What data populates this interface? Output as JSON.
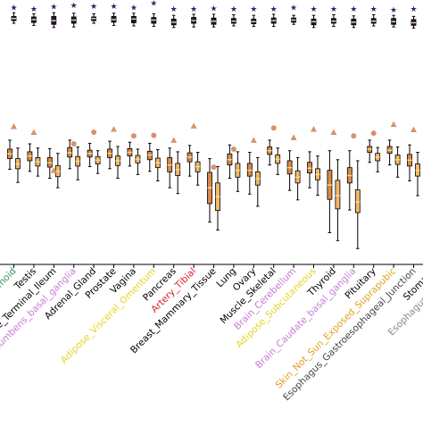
{
  "chart_data": {
    "type": "box",
    "categories": [
      {
        "label": "Colon_Sigmoid",
        "color": "#3a8f5e"
      },
      {
        "label": "Testis",
        "color": "#000000"
      },
      {
        "label": "Small_Intestine_Terminal_Ileum",
        "color": "#000000"
      },
      {
        "label": "Brain_Nucleus_accumbens_basal_ganglia",
        "color": "#c77ad8"
      },
      {
        "label": "Adrenal_Gland",
        "color": "#000000"
      },
      {
        "label": "Prostate",
        "color": "#000000"
      },
      {
        "label": "Vagina",
        "color": "#000000"
      },
      {
        "label": "Adipose_Visceral_Omentum",
        "color": "#e6d32a"
      },
      {
        "label": "Pancreas",
        "color": "#000000"
      },
      {
        "label": "Artery_Tibial",
        "color": "#d62728"
      },
      {
        "label": "Breast_Mammary_Tissue",
        "color": "#000000"
      },
      {
        "label": "Lung",
        "color": "#000000"
      },
      {
        "label": "Ovary",
        "color": "#000000"
      },
      {
        "label": "Muscle_Skeletal",
        "color": "#000000"
      },
      {
        "label": "Brain_Cerebellum",
        "color": "#c77ad8"
      },
      {
        "label": "Adipose_Subcutaneous",
        "color": "#e6d32a"
      },
      {
        "label": "Thyroid",
        "color": "#000000"
      },
      {
        "label": "Brain_Caudate_basal_ganglia",
        "color": "#c77ad8"
      },
      {
        "label": "Pituitary",
        "color": "#000000"
      },
      {
        "label": "Skin_Not_Sun_Exposed_Suprapubic",
        "color": "#e0a020"
      },
      {
        "label": "Esophagus_Gastroesophageal_Junction",
        "color": "#444444"
      },
      {
        "label": "Stomach",
        "color": "#000000"
      },
      {
        "label": "Esophagus_Mucosa",
        "color": "#888888"
      }
    ],
    "ylim": [
      0,
      1
    ],
    "top_group": [
      {
        "star": 0.972,
        "q1": 0.922,
        "median": 0.93,
        "q3": 0.938,
        "lo": 0.912,
        "hi": 0.952
      },
      {
        "star": 0.966,
        "q1": 0.915,
        "median": 0.926,
        "q3": 0.936,
        "lo": 0.904,
        "hi": 0.948
      },
      {
        "star": 0.974,
        "q1": 0.908,
        "median": 0.922,
        "q3": 0.938,
        "lo": 0.896,
        "hi": 0.952
      },
      {
        "star": 0.98,
        "q1": 0.912,
        "median": 0.924,
        "q3": 0.936,
        "lo": 0.898,
        "hi": 0.95
      },
      {
        "star": 0.976,
        "q1": 0.922,
        "median": 0.93,
        "q3": 0.936,
        "lo": 0.912,
        "hi": 0.948
      },
      {
        "star": 0.976,
        "q1": 0.916,
        "median": 0.926,
        "q3": 0.938,
        "lo": 0.904,
        "hi": 0.95
      },
      {
        "star": 0.972,
        "q1": 0.914,
        "median": 0.928,
        "q3": 0.938,
        "lo": 0.902,
        "hi": 0.95
      },
      {
        "star": 0.988,
        "q1": 0.912,
        "median": 0.924,
        "q3": 0.934,
        "lo": 0.9,
        "hi": 0.948
      },
      {
        "star": 0.966,
        "q1": 0.906,
        "median": 0.916,
        "q3": 0.928,
        "lo": 0.896,
        "hi": 0.942
      },
      {
        "star": 0.966,
        "q1": 0.912,
        "median": 0.922,
        "q3": 0.934,
        "lo": 0.898,
        "hi": 0.946
      },
      {
        "star": 0.968,
        "q1": 0.908,
        "median": 0.92,
        "q3": 0.932,
        "lo": 0.898,
        "hi": 0.946
      },
      {
        "star": 0.966,
        "q1": 0.912,
        "median": 0.92,
        "q3": 0.93,
        "lo": 0.902,
        "hi": 0.944
      },
      {
        "star": 0.966,
        "q1": 0.91,
        "median": 0.918,
        "q3": 0.928,
        "lo": 0.9,
        "hi": 0.942
      },
      {
        "star": 0.966,
        "q1": 0.912,
        "median": 0.922,
        "q3": 0.932,
        "lo": 0.9,
        "hi": 0.946
      },
      {
        "star": 0.972,
        "q1": 0.916,
        "median": 0.924,
        "q3": 0.932,
        "lo": 0.908,
        "hi": 0.942
      },
      {
        "star": 0.966,
        "q1": 0.906,
        "median": 0.918,
        "q3": 0.928,
        "lo": 0.896,
        "hi": 0.942
      },
      {
        "star": 0.966,
        "q1": 0.912,
        "median": 0.92,
        "q3": 0.93,
        "lo": 0.9,
        "hi": 0.944
      },
      {
        "star": 0.966,
        "q1": 0.906,
        "median": 0.916,
        "q3": 0.928,
        "lo": 0.896,
        "hi": 0.94
      },
      {
        "star": 0.966,
        "q1": 0.912,
        "median": 0.92,
        "q3": 0.93,
        "lo": 0.902,
        "hi": 0.944
      },
      {
        "star": 0.962,
        "q1": 0.908,
        "median": 0.918,
        "q3": 0.93,
        "lo": 0.898,
        "hi": 0.942
      },
      {
        "star": 0.966,
        "q1": 0.904,
        "median": 0.914,
        "q3": 0.926,
        "lo": 0.894,
        "hi": 0.938
      },
      {
        "star": 0.96,
        "q1": 0.906,
        "median": 0.916,
        "q3": 0.926,
        "lo": 0.896,
        "hi": 0.94
      },
      {
        "star": 0.968,
        "q1": 0.912,
        "median": 0.922,
        "q3": 0.93,
        "lo": 0.902,
        "hi": 0.942
      }
    ],
    "bottom_group": [
      {
        "marker": "triangle",
        "marker_y": 0.522,
        "boxes": [
          {
            "q1": 0.4,
            "median": 0.418,
            "q3": 0.436,
            "lo": 0.36,
            "hi": 0.47
          },
          {
            "q1": 0.362,
            "median": 0.38,
            "q3": 0.4,
            "lo": 0.31,
            "hi": 0.44
          }
        ]
      },
      {
        "marker": "triangle",
        "marker_y": 0.5,
        "boxes": [
          {
            "q1": 0.392,
            "median": 0.41,
            "q3": 0.426,
            "lo": 0.352,
            "hi": 0.456
          },
          {
            "q1": 0.372,
            "median": 0.388,
            "q3": 0.404,
            "lo": 0.334,
            "hi": 0.44
          }
        ]
      },
      {
        "marker": "triangle",
        "marker_y": 0.356,
        "boxes": [
          {
            "q1": 0.368,
            "median": 0.384,
            "q3": 0.404,
            "lo": 0.326,
            "hi": 0.438
          },
          {
            "q1": 0.332,
            "median": 0.352,
            "q3": 0.374,
            "lo": 0.29,
            "hi": 0.42
          }
        ]
      },
      {
        "marker": "circle",
        "marker_y": 0.456,
        "boxes": [
          {
            "q1": 0.406,
            "median": 0.422,
            "q3": 0.442,
            "lo": 0.362,
            "hi": 0.47
          },
          {
            "q1": 0.372,
            "median": 0.39,
            "q3": 0.408,
            "lo": 0.32,
            "hi": 0.444
          }
        ]
      },
      {
        "marker": "circle",
        "marker_y": 0.5,
        "boxes": [
          {
            "q1": 0.406,
            "median": 0.42,
            "q3": 0.432,
            "lo": 0.37,
            "hi": 0.458
          },
          {
            "q1": 0.38,
            "median": 0.394,
            "q3": 0.408,
            "lo": 0.344,
            "hi": 0.43
          }
        ]
      },
      {
        "marker": "triangle",
        "marker_y": 0.512,
        "boxes": [
          {
            "q1": 0.404,
            "median": 0.42,
            "q3": 0.436,
            "lo": 0.362,
            "hi": 0.466
          },
          {
            "q1": 0.374,
            "median": 0.392,
            "q3": 0.41,
            "lo": 0.326,
            "hi": 0.446
          }
        ]
      },
      {
        "marker": "circle",
        "marker_y": 0.486,
        "boxes": [
          {
            "q1": 0.41,
            "median": 0.424,
            "q3": 0.438,
            "lo": 0.372,
            "hi": 0.462
          },
          {
            "q1": 0.384,
            "median": 0.398,
            "q3": 0.412,
            "lo": 0.34,
            "hi": 0.436
          }
        ]
      },
      {
        "marker": "circle",
        "marker_y": 0.488,
        "boxes": [
          {
            "q1": 0.396,
            "median": 0.414,
            "q3": 0.428,
            "lo": 0.352,
            "hi": 0.458
          },
          {
            "q1": 0.366,
            "median": 0.384,
            "q3": 0.402,
            "lo": 0.316,
            "hi": 0.434
          }
        ]
      },
      {
        "marker": "triangle",
        "marker_y": 0.47,
        "boxes": [
          {
            "q1": 0.35,
            "median": 0.376,
            "q3": 0.404,
            "lo": 0.29,
            "hi": 0.44
          },
          {
            "q1": 0.336,
            "median": 0.358,
            "q3": 0.382,
            "lo": 0.268,
            "hi": 0.426
          }
        ]
      },
      {
        "marker": "triangle",
        "marker_y": 0.524,
        "boxes": [
          {
            "q1": 0.388,
            "median": 0.406,
            "q3": 0.422,
            "lo": 0.334,
            "hi": 0.45
          },
          {
            "q1": 0.35,
            "median": 0.37,
            "q3": 0.388,
            "lo": 0.3,
            "hi": 0.424
          }
        ]
      },
      {
        "marker": "circle",
        "marker_y": 0.368,
        "boxes": [
          {
            "q1": 0.23,
            "median": 0.29,
            "q3": 0.348,
            "lo": 0.16,
            "hi": 0.4
          },
          {
            "q1": 0.204,
            "median": 0.256,
            "q3": 0.308,
            "lo": 0.13,
            "hi": 0.37
          }
        ]
      },
      {
        "marker": "circle",
        "marker_y": 0.436,
        "boxes": [
          {
            "q1": 0.376,
            "median": 0.396,
            "q3": 0.418,
            "lo": 0.326,
            "hi": 0.452
          },
          {
            "q1": 0.33,
            "median": 0.356,
            "q3": 0.382,
            "lo": 0.276,
            "hi": 0.426
          }
        ]
      },
      {
        "marker": "triangle",
        "marker_y": 0.47,
        "boxes": [
          {
            "q1": 0.334,
            "median": 0.356,
            "q3": 0.382,
            "lo": 0.266,
            "hi": 0.424
          },
          {
            "q1": 0.3,
            "median": 0.324,
            "q3": 0.35,
            "lo": 0.22,
            "hi": 0.404
          }
        ]
      },
      {
        "marker": "circle",
        "marker_y": 0.516,
        "boxes": [
          {
            "q1": 0.416,
            "median": 0.43,
            "q3": 0.444,
            "lo": 0.376,
            "hi": 0.47
          },
          {
            "q1": 0.382,
            "median": 0.398,
            "q3": 0.414,
            "lo": 0.34,
            "hi": 0.44
          }
        ]
      },
      {
        "marker": "triangle",
        "marker_y": 0.48,
        "boxes": [
          {
            "q1": 0.342,
            "median": 0.366,
            "q3": 0.392,
            "lo": 0.28,
            "hi": 0.43
          },
          {
            "q1": 0.308,
            "median": 0.33,
            "q3": 0.354,
            "lo": 0.244,
            "hi": 0.404
          }
        ]
      },
      {
        "marker": "triangle",
        "marker_y": 0.512,
        "boxes": [
          {
            "q1": 0.346,
            "median": 0.364,
            "q3": 0.386,
            "lo": 0.29,
            "hi": 0.426
          },
          {
            "q1": 0.32,
            "median": 0.34,
            "q3": 0.362,
            "lo": 0.262,
            "hi": 0.41
          }
        ]
      },
      {
        "marker": "triangle",
        "marker_y": 0.5,
        "boxes": [
          {
            "q1": 0.246,
            "median": 0.3,
            "q3": 0.356,
            "lo": 0.12,
            "hi": 0.43
          },
          {
            "q1": 0.21,
            "median": 0.26,
            "q3": 0.318,
            "lo": 0.09,
            "hi": 0.396
          }
        ]
      },
      {
        "marker": "circle",
        "marker_y": 0.486,
        "boxes": [
          {
            "q1": 0.308,
            "median": 0.336,
            "q3": 0.366,
            "lo": 0.206,
            "hi": 0.43
          },
          {
            "q1": 0.196,
            "median": 0.236,
            "q3": 0.282,
            "lo": 0.06,
            "hi": 0.392
          }
        ]
      },
      {
        "marker": "circle",
        "marker_y": 0.496,
        "boxes": [
          {
            "q1": 0.424,
            "median": 0.436,
            "q3": 0.446,
            "lo": 0.386,
            "hi": 0.47
          },
          {
            "q1": 0.392,
            "median": 0.406,
            "q3": 0.42,
            "lo": 0.35,
            "hi": 0.442
          }
        ]
      },
      {
        "marker": "triangle",
        "marker_y": 0.53,
        "boxes": [
          {
            "q1": 0.42,
            "median": 0.432,
            "q3": 0.446,
            "lo": 0.376,
            "hi": 0.47
          },
          {
            "q1": 0.378,
            "median": 0.396,
            "q3": 0.414,
            "lo": 0.33,
            "hi": 0.444
          }
        ]
      },
      {
        "marker": "triangle",
        "marker_y": 0.51,
        "boxes": [
          {
            "q1": 0.372,
            "median": 0.394,
            "q3": 0.416,
            "lo": 0.316,
            "hi": 0.452
          },
          {
            "q1": 0.334,
            "median": 0.356,
            "q3": 0.38,
            "lo": 0.26,
            "hi": 0.424
          }
        ]
      },
      {
        "marker": "circle",
        "marker_y": 0.47,
        "boxes": [
          {
            "q1": 0.406,
            "median": 0.422,
            "q3": 0.438,
            "lo": 0.362,
            "hi": 0.466
          },
          {
            "q1": 0.368,
            "median": 0.386,
            "q3": 0.404,
            "lo": 0.318,
            "hi": 0.438
          }
        ]
      },
      {
        "marker": "triangle",
        "marker_y": 0.52,
        "boxes": [
          {
            "q1": 0.398,
            "median": 0.414,
            "q3": 0.432,
            "lo": 0.35,
            "hi": 0.462
          },
          {
            "q1": 0.364,
            "median": 0.382,
            "q3": 0.4,
            "lo": 0.316,
            "hi": 0.436
          }
        ]
      }
    ],
    "colors": {
      "star": "#3b1e63",
      "top_box": "#2a1248",
      "median_top": "#f3d98a",
      "box_left": "#d98a4b",
      "box_right": "#f2b86b",
      "median_bottom": "#f6e08f",
      "marker": "#d8926a",
      "axis": "#000000"
    },
    "grid": false,
    "legend": "none"
  }
}
